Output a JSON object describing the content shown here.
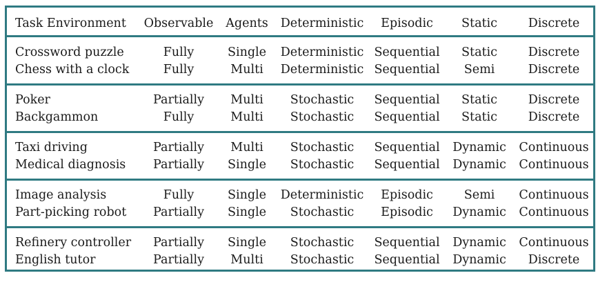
{
  "table": {
    "headers": [
      "Task Environment",
      "Observable",
      "Agents",
      "Deterministic",
      "Episodic",
      "Static",
      "Discrete"
    ],
    "groups": [
      [
        [
          "Crossword puzzle",
          "Fully",
          "Single",
          "Deterministic",
          "Sequential",
          "Static",
          "Discrete"
        ],
        [
          "Chess with a clock",
          "Fully",
          "Multi",
          "Deterministic",
          "Sequential",
          "Semi",
          "Discrete"
        ]
      ],
      [
        [
          "Poker",
          "Partially",
          "Multi",
          "Stochastic",
          "Sequential",
          "Static",
          "Discrete"
        ],
        [
          "Backgammon",
          "Fully",
          "Multi",
          "Stochastic",
          "Sequential",
          "Static",
          "Discrete"
        ]
      ],
      [
        [
          "Taxi driving",
          "Partially",
          "Multi",
          "Stochastic",
          "Sequential",
          "Dynamic",
          "Continuous"
        ],
        [
          "Medical diagnosis",
          "Partially",
          "Single",
          "Stochastic",
          "Sequential",
          "Dynamic",
          "Continuous"
        ]
      ],
      [
        [
          "Image analysis",
          "Fully",
          "Single",
          "Deterministic",
          "Episodic",
          "Semi",
          "Continuous"
        ],
        [
          "Part-picking robot",
          "Partially",
          "Single",
          "Stochastic",
          "Episodic",
          "Dynamic",
          "Continuous"
        ]
      ],
      [
        [
          "Refinery controller",
          "Partially",
          "Single",
          "Stochastic",
          "Sequential",
          "Dynamic",
          "Continuous"
        ],
        [
          "English tutor",
          "Partially",
          "Multi",
          "Stochastic",
          "Sequential",
          "Dynamic",
          "Discrete"
        ]
      ]
    ]
  },
  "colors": {
    "border": "#2f7a82",
    "text": "#1a1a1a"
  }
}
